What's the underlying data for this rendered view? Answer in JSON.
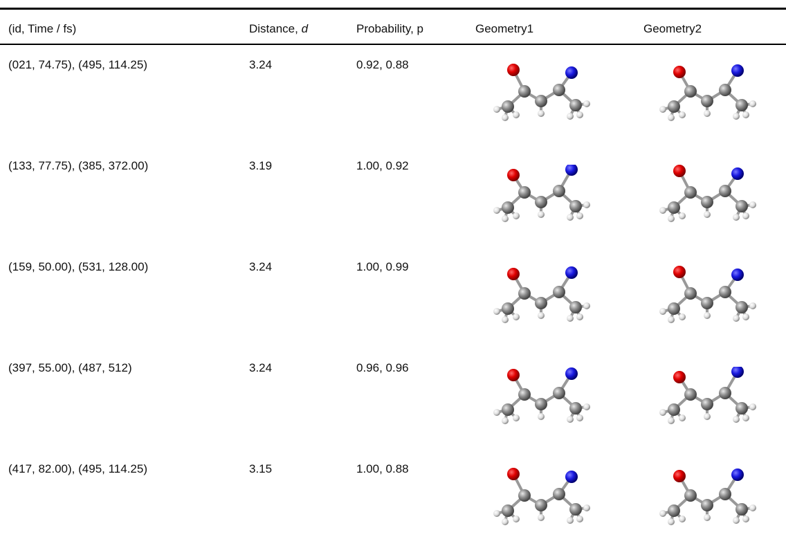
{
  "table": {
    "header": [
      "(id, Time / fs)",
      {
        "text": "Distance, ",
        "var": "d"
      },
      "Probability, p",
      "Geometry1",
      "Geometry2"
    ],
    "rows": [
      [
        "(021, 74.75), (495, 114.25)",
        "3.24",
        "0.92, 0.88"
      ],
      [
        "(133, 77.75), (385, 372.00)",
        "3.19",
        "1.00, 0.92"
      ],
      [
        "(159, 50.00), (531, 128.00)",
        "3.24",
        "1.00, 0.99"
      ],
      [
        "(397, 55.00), (487, 512)",
        "3.24",
        "0.96, 0.96"
      ],
      [
        "(417, 82.00), (495, 114.25)",
        "3.15",
        "1.00, 0.88"
      ]
    ]
  }
}
